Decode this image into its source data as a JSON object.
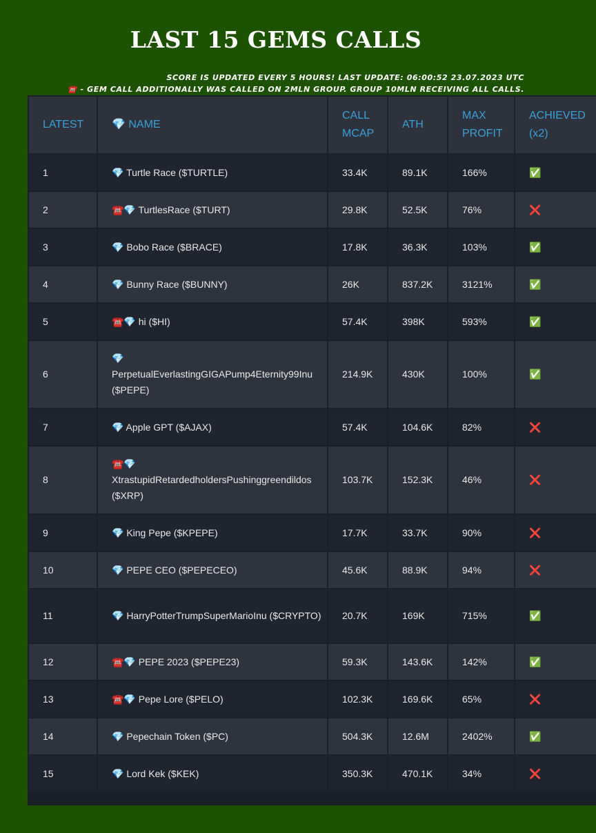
{
  "title": "LAST 15 GEMS CALLS",
  "notes": {
    "update": "SCORE IS UPDATED EVERY 5 HOURS! LAST UPDATE: 06:00:52 23.07.2023 UTC",
    "groups": "☎️ - GEM CALL ADDITIONALLY WAS CALLED ON 2MLN GROUP. GROUP 10MLN RECEIVING ALL CALLS."
  },
  "headers": {
    "latest": "LATEST",
    "name": "💎 NAME",
    "call_mcap": "CALL MCAP",
    "ath": "ATH",
    "max_profit": "MAX PROFIT",
    "achieved": "ACHIEVED (x2)"
  },
  "achieved_symbols": {
    "yes": "✅",
    "no": "❌"
  },
  "rows": [
    {
      "latest": "1",
      "name": "💎 Turtle Race ($TURTLE)",
      "call_mcap": "33.4K",
      "ath": "89.1K",
      "max_profit": "166%",
      "achieved": "✅"
    },
    {
      "latest": "2",
      "name": "☎️💎 TurtlesRace ($TURT)",
      "call_mcap": "29.8K",
      "ath": "52.5K",
      "max_profit": "76%",
      "achieved": "❌"
    },
    {
      "latest": "3",
      "name": "💎 Bobo Race ($BRACE)",
      "call_mcap": "17.8K",
      "ath": "36.3K",
      "max_profit": "103%",
      "achieved": "✅"
    },
    {
      "latest": "4",
      "name": "💎 Bunny Race ($BUNNY)",
      "call_mcap": "26K",
      "ath": "837.2K",
      "max_profit": "3121%",
      "achieved": "✅"
    },
    {
      "latest": "5",
      "name": "☎️💎 hi ($HI)",
      "call_mcap": "57.4K",
      "ath": "398K",
      "max_profit": "593%",
      "achieved": "✅"
    },
    {
      "latest": "6",
      "name": "💎 PerpetualEverlastingGIGAPump4Eternity99Inu ($PEPE)",
      "call_mcap": "214.9K",
      "ath": "430K",
      "max_profit": "100%",
      "achieved": "✅"
    },
    {
      "latest": "7",
      "name": "💎 Apple GPT ($AJAX)",
      "call_mcap": "57.4K",
      "ath": "104.6K",
      "max_profit": "82%",
      "achieved": "❌"
    },
    {
      "latest": "8",
      "name": "☎️💎 XtrastupidRetardedholdersPushinggreendildos ($XRP)",
      "call_mcap": "103.7K",
      "ath": "152.3K",
      "max_profit": "46%",
      "achieved": "❌"
    },
    {
      "latest": "9",
      "name": "💎 King Pepe ($KPEPE)",
      "call_mcap": "17.7K",
      "ath": "33.7K",
      "max_profit": "90%",
      "achieved": "❌"
    },
    {
      "latest": "10",
      "name": "💎 PEPE CEO ($PEPECEO)",
      "call_mcap": "45.6K",
      "ath": "88.9K",
      "max_profit": "94%",
      "achieved": "❌"
    },
    {
      "latest": "11",
      "name": "💎 HarryPotterTrumpSuperMarioInu ($CRYPTO)",
      "call_mcap": "20.7K",
      "ath": "169K",
      "max_profit": "715%",
      "achieved": "✅"
    },
    {
      "latest": "12",
      "name": "☎️💎 PEPE 2023 ($PEPE23)",
      "call_mcap": "59.3K",
      "ath": "143.6K",
      "max_profit": "142%",
      "achieved": "✅"
    },
    {
      "latest": "13",
      "name": "☎️💎 Pepe Lore ($PELO)",
      "call_mcap": "102.3K",
      "ath": "169.6K",
      "max_profit": "65%",
      "achieved": "❌"
    },
    {
      "latest": "14",
      "name": "💎 Pepechain Token ($PC)",
      "call_mcap": "504.3K",
      "ath": "12.6M",
      "max_profit": "2402%",
      "achieved": "✅"
    },
    {
      "latest": "15",
      "name": "💎 Lord Kek ($KEK)",
      "call_mcap": "350.3K",
      "ath": "470.1K",
      "max_profit": "34%",
      "achieved": "❌"
    }
  ]
}
